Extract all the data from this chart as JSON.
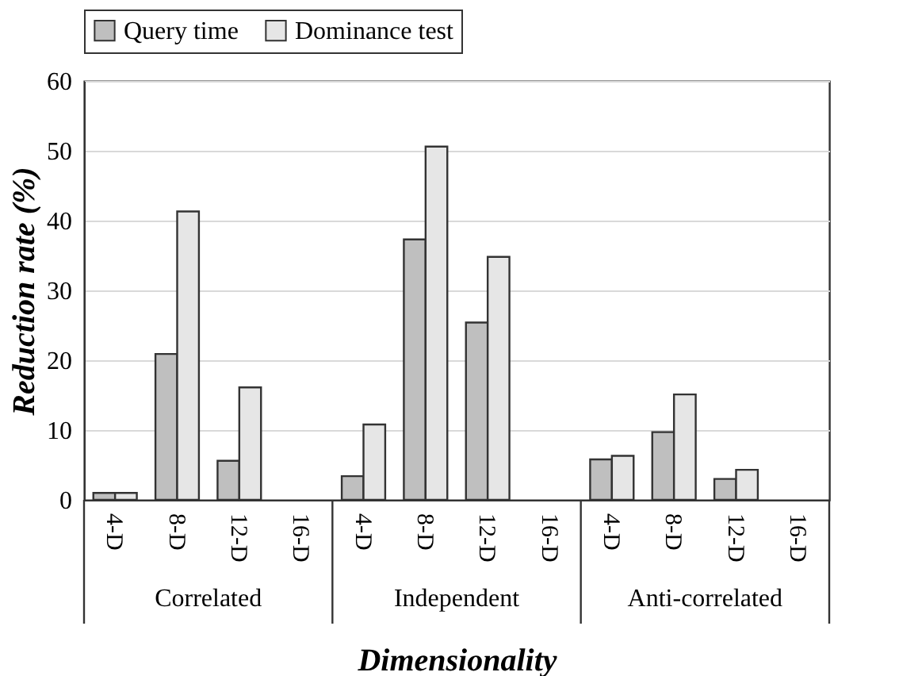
{
  "chart_data": {
    "type": "bar",
    "xlabel": "Dimensionality",
    "ylabel": "Reduction rate (%)",
    "categories": [
      "4-D",
      "8-D",
      "12-D",
      "16-D",
      "4-D",
      "8-D",
      "12-D",
      "16-D",
      "4-D",
      "8-D",
      "12-D",
      "16-D"
    ],
    "series": [
      {
        "name": "Query time",
        "color": "#bfbfbf",
        "values": [
          1.0,
          20.9,
          5.6,
          null,
          3.4,
          37.3,
          25.4,
          null,
          5.8,
          9.7,
          3.0,
          null
        ]
      },
      {
        "name": "Dominance test",
        "color": "#e6e6e6",
        "values": [
          1.0,
          41.3,
          16.1,
          null,
          10.8,
          50.6,
          34.8,
          null,
          6.3,
          15.1,
          4.3,
          null
        ]
      }
    ],
    "annotations": [
      "Correlated",
      "Independent",
      "Anti-correlated"
    ],
    "ylim": [
      0,
      60
    ],
    "yticks": [
      0,
      10,
      20,
      30,
      40,
      50,
      60
    ],
    "grid": "y",
    "legend": "top"
  }
}
